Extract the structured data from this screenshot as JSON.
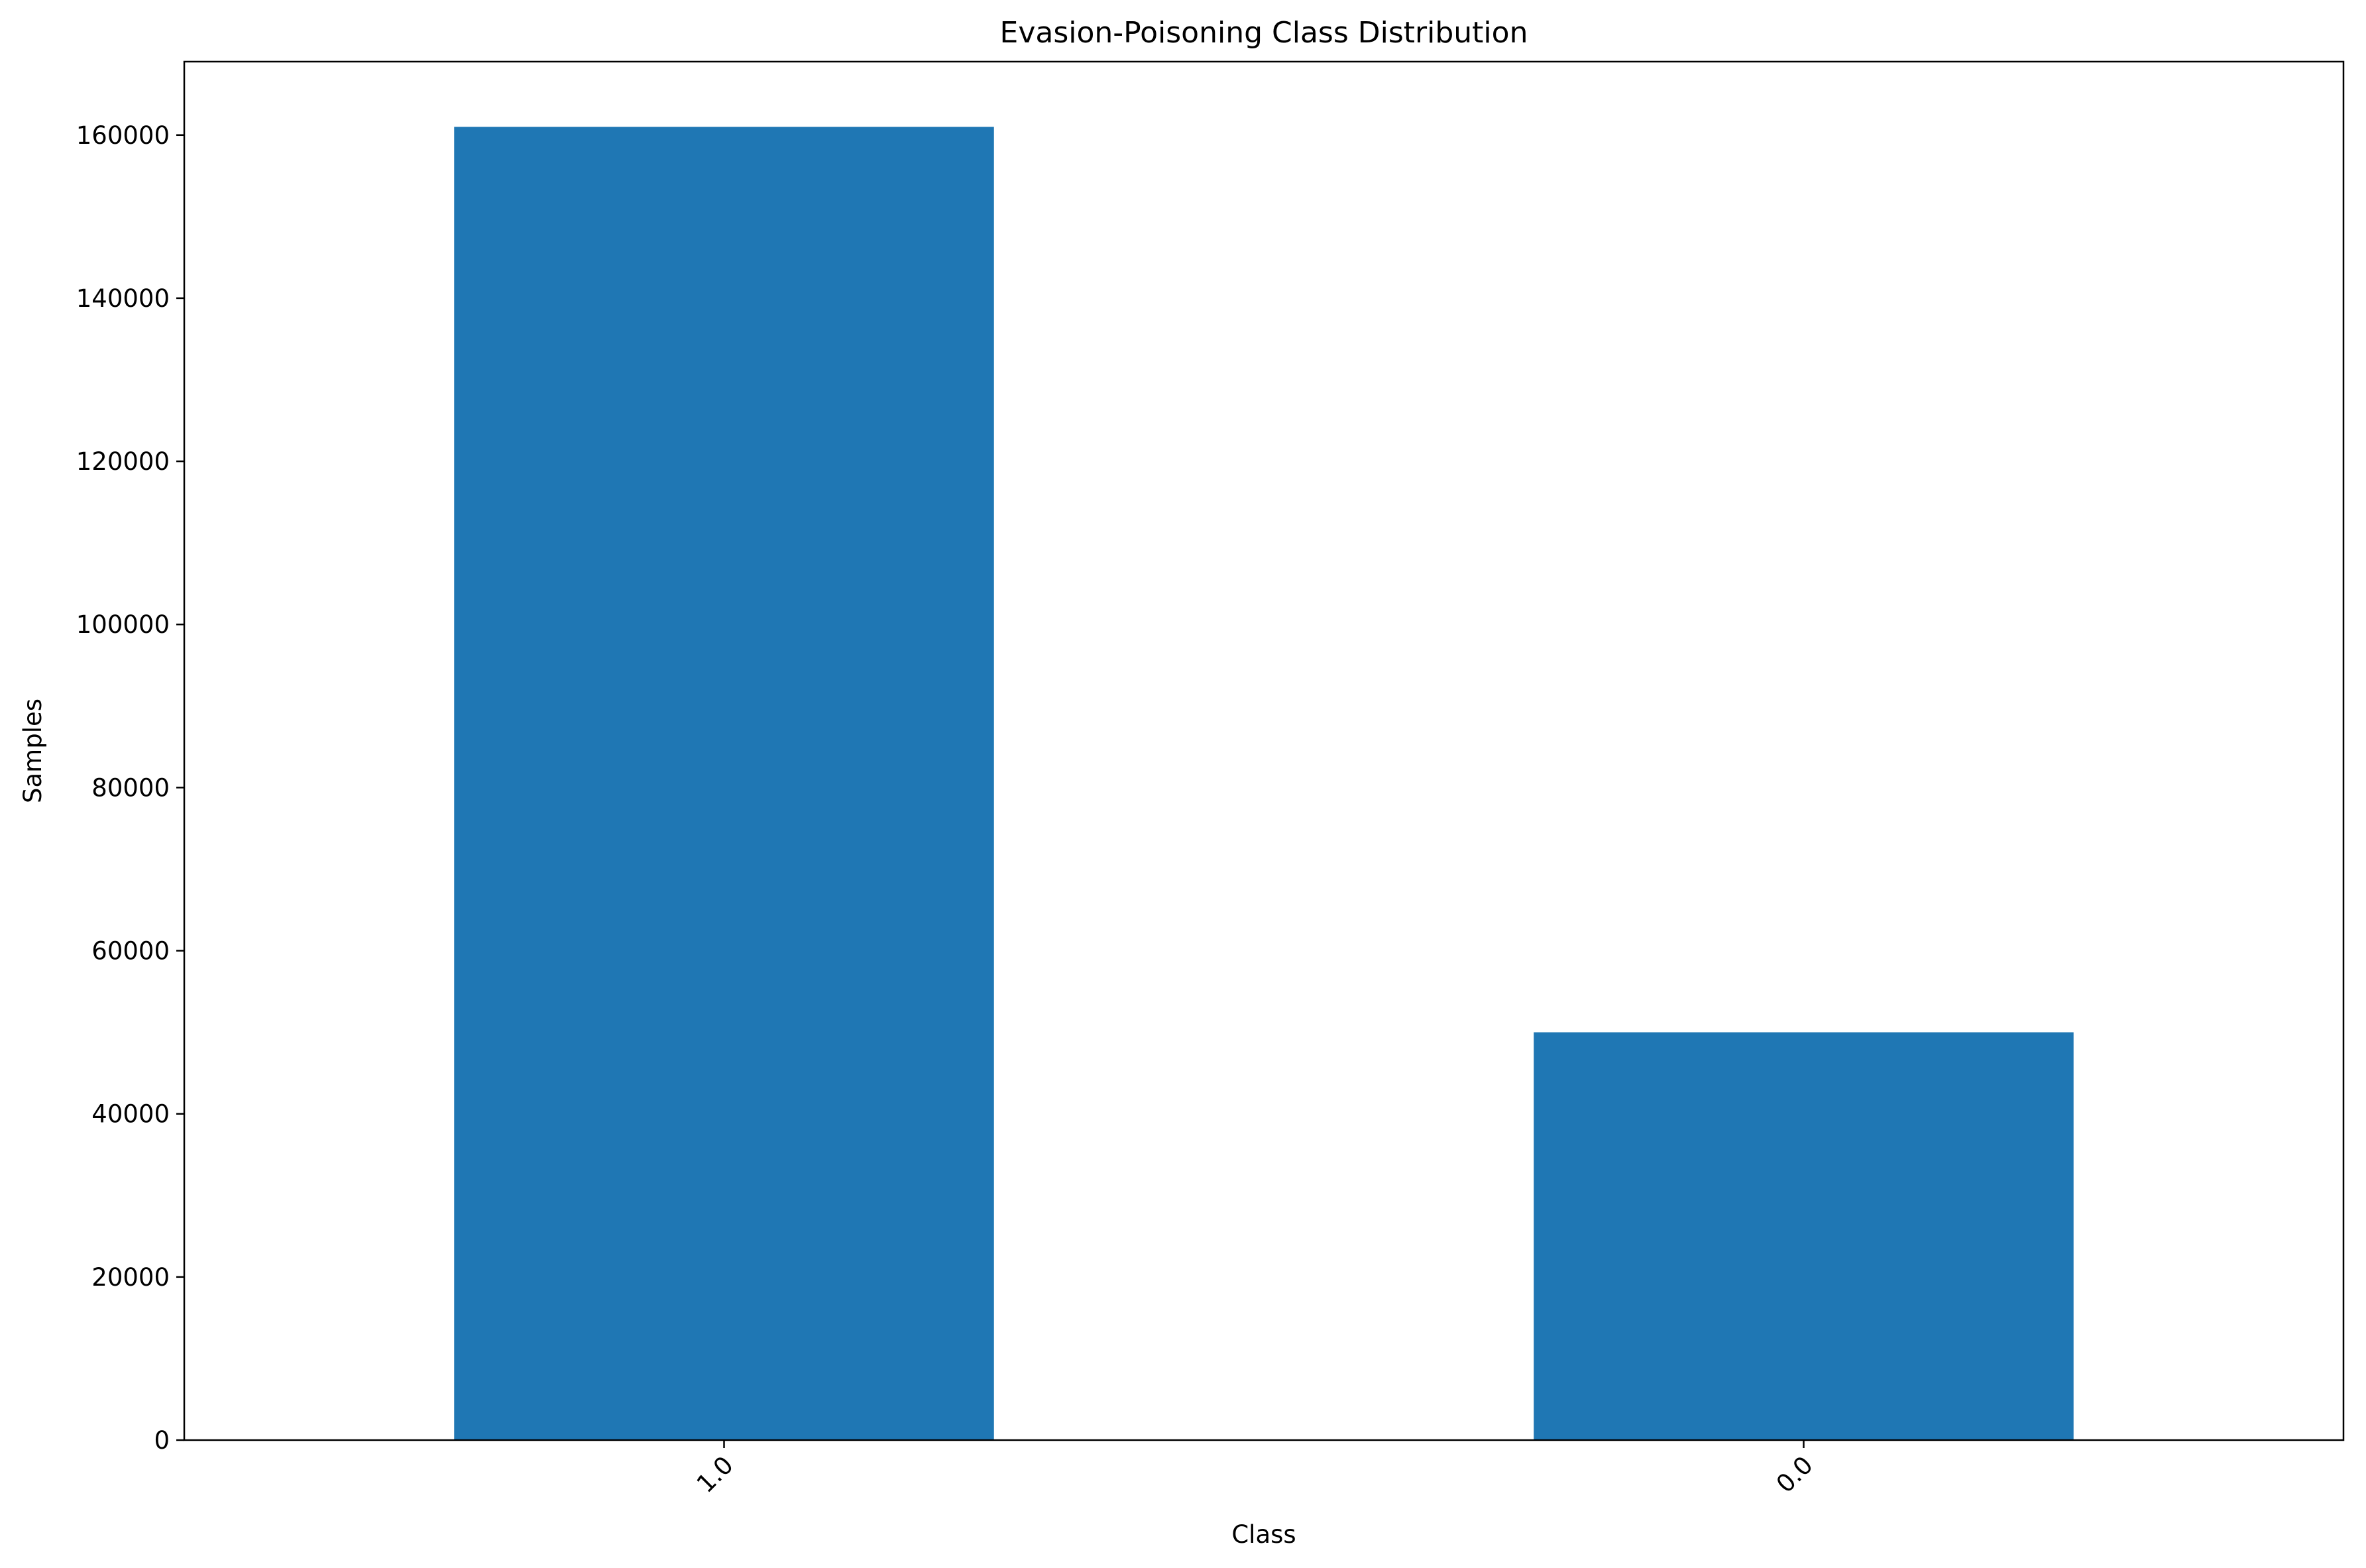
{
  "chart_data": {
    "type": "bar",
    "title": "Evasion-Poisoning Class Distribution",
    "xlabel": "Class",
    "ylabel": "Samples",
    "categories": [
      "1.0",
      "0.0"
    ],
    "values": [
      161000,
      50000
    ],
    "ylim": [
      0,
      169000
    ],
    "yticks": [
      0,
      20000,
      40000,
      60000,
      80000,
      100000,
      120000,
      140000,
      160000
    ],
    "ytick_labels": [
      "0",
      "20000",
      "40000",
      "60000",
      "80000",
      "100000",
      "120000",
      "140000",
      "160000"
    ],
    "xtick_rotation": "45",
    "grid": false,
    "legend": false,
    "colors": {
      "bar": "#1f77b4",
      "axes": "#000000",
      "background": "#ffffff"
    }
  }
}
